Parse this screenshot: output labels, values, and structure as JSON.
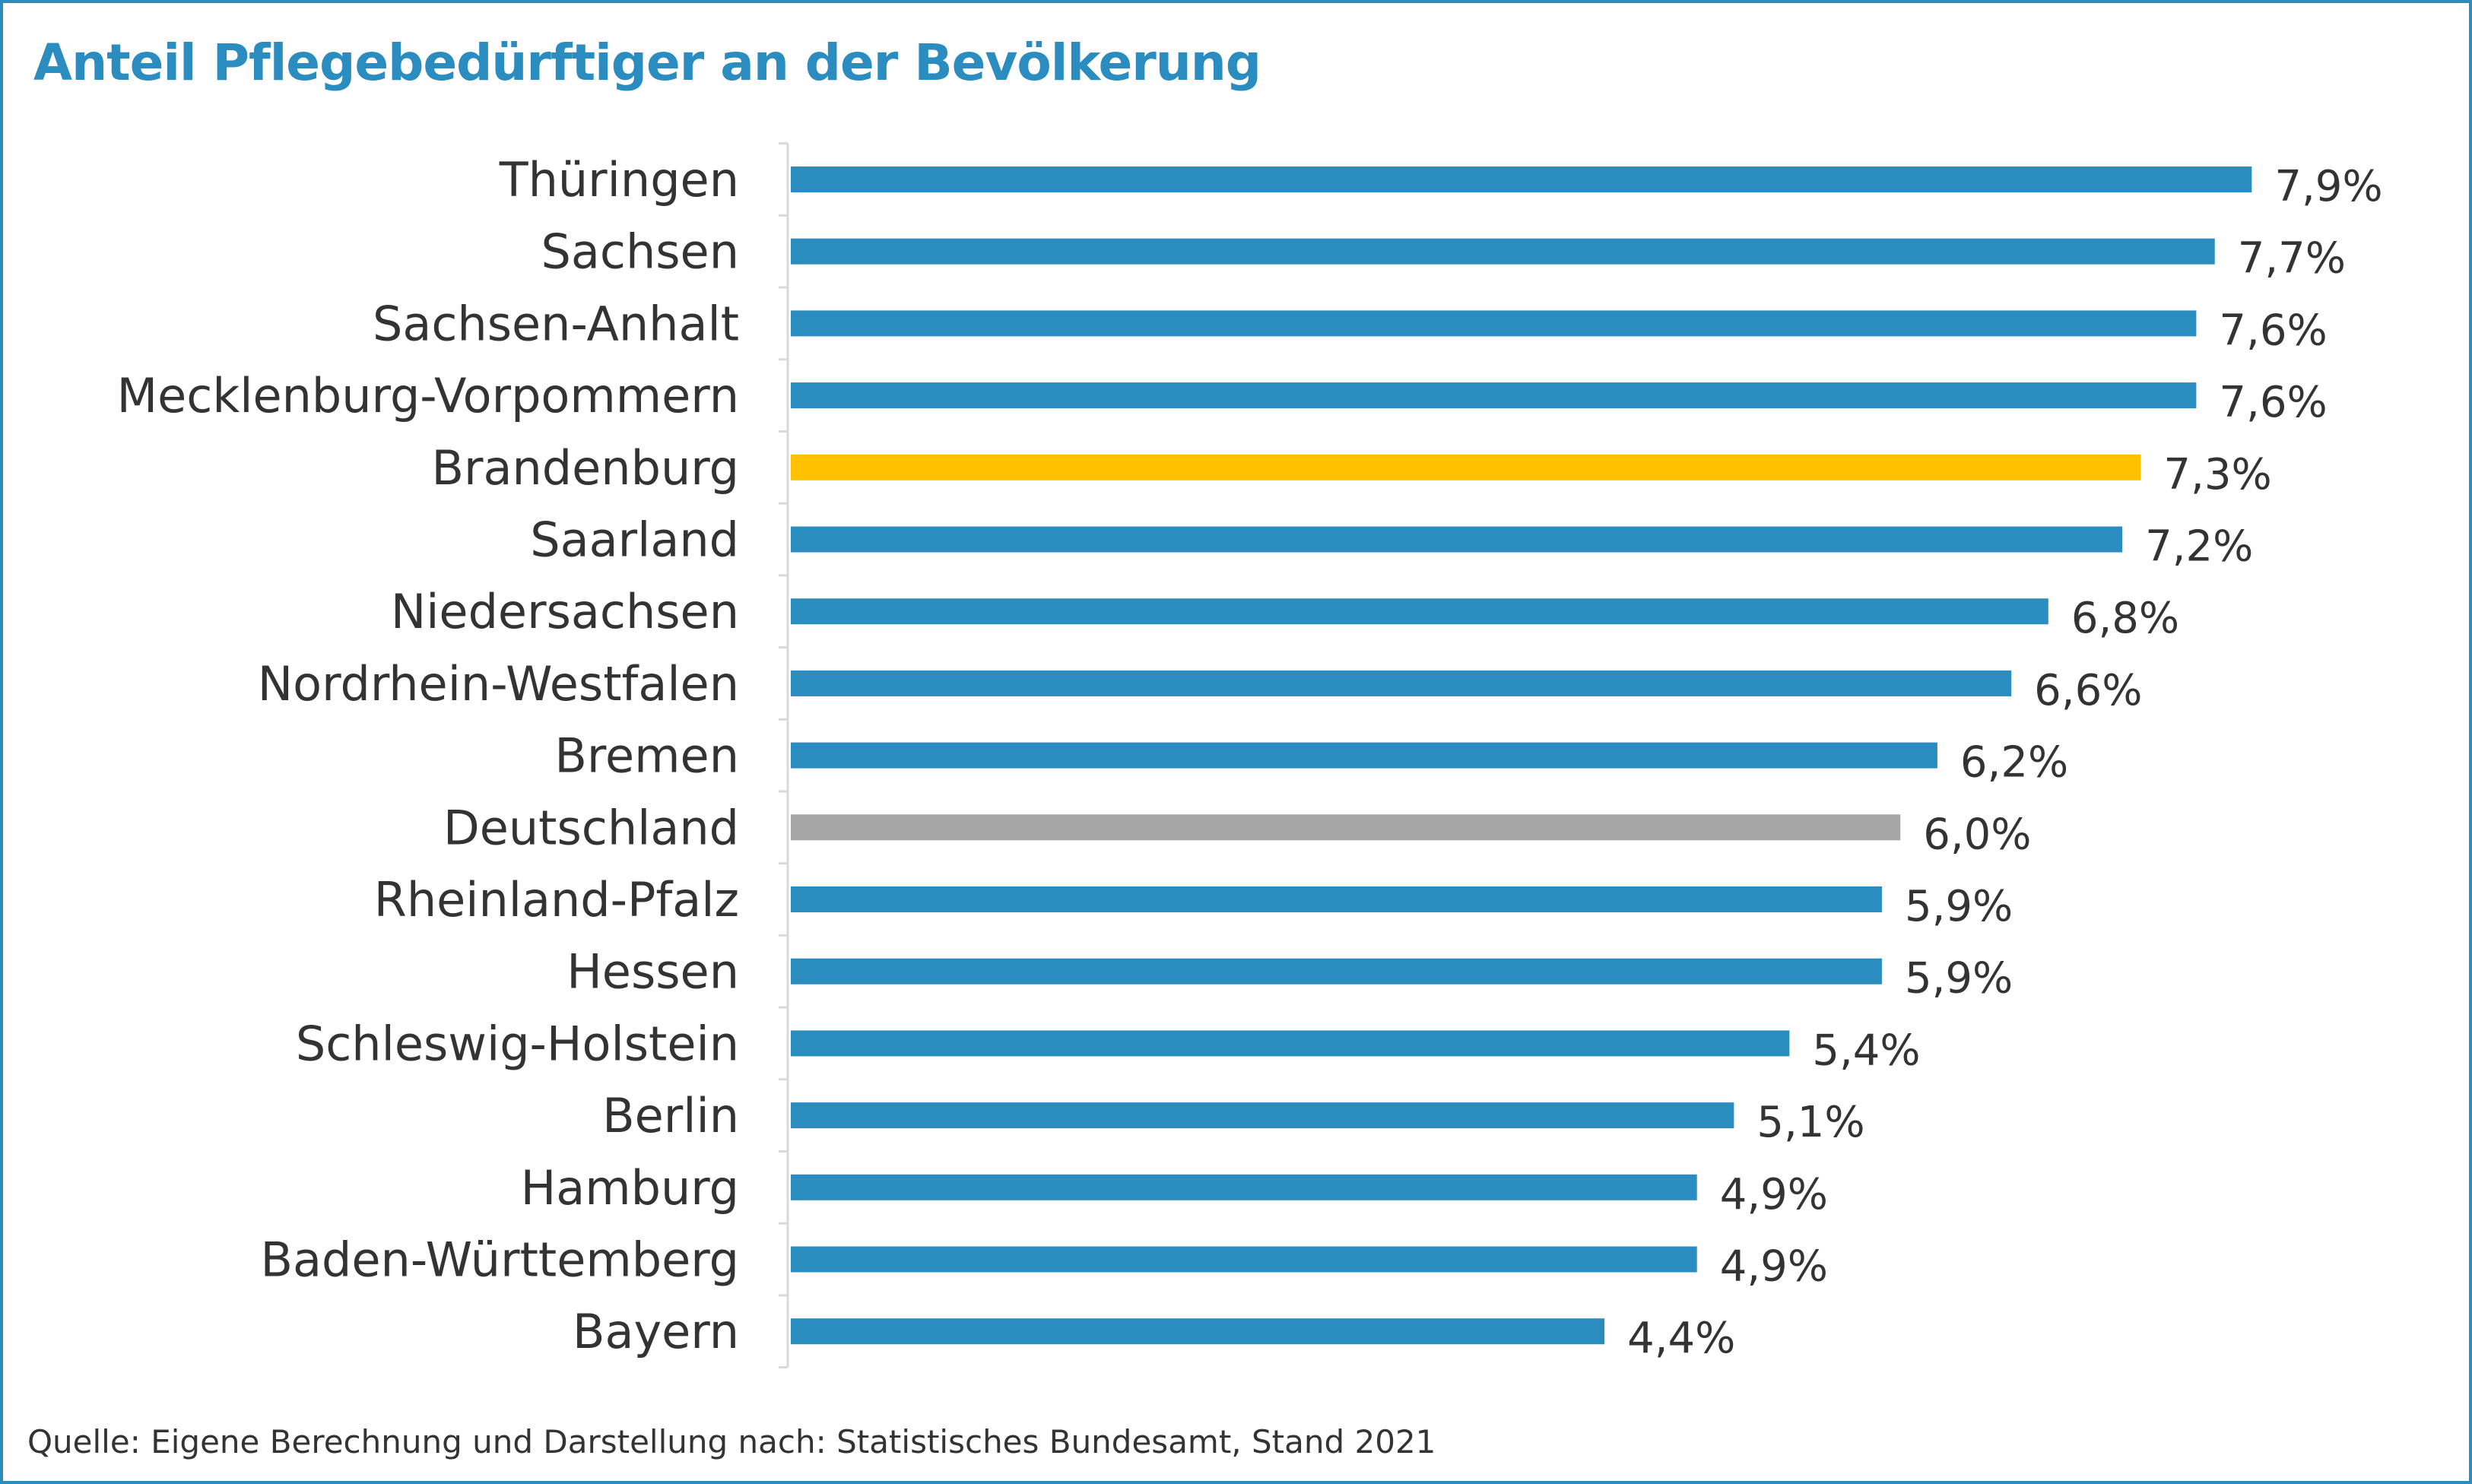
{
  "chart_data": {
    "type": "bar",
    "orientation": "horizontal",
    "title": "Anteil Pflegebedürftiger an der Bevölkerung",
    "categories": [
      "Thüringen",
      "Sachsen",
      "Sachsen-Anhalt",
      "Mecklenburg-Vorpommern",
      "Brandenburg",
      "Saarland",
      "Niedersachsen",
      "Nordrhein-Westfalen",
      "Bremen",
      "Deutschland",
      "Rheinland-Pfalz",
      "Hessen",
      "Schleswig-Holstein",
      "Berlin",
      "Hamburg",
      "Baden-Württemberg",
      "Bayern"
    ],
    "values": [
      7.9,
      7.7,
      7.6,
      7.6,
      7.3,
      7.2,
      6.8,
      6.6,
      6.2,
      6.0,
      5.9,
      5.9,
      5.4,
      5.1,
      4.9,
      4.9,
      4.4
    ],
    "value_labels": [
      "7,9%",
      "7,7%",
      "7,6%",
      "7,6%",
      "7,3%",
      "7,2%",
      "6,8%",
      "6,6%",
      "6,2%",
      "6,0%",
      "5,9%",
      "5,9%",
      "5,4%",
      "5,1%",
      "4,9%",
      "4,9%",
      "4,4%"
    ],
    "unit": "%",
    "xlim": [
      0,
      8.1
    ],
    "grid": false,
    "colors": {
      "default": "#2b8cbf",
      "Brandenburg": "#ffc000",
      "Deutschland": "#a6a6a6",
      "title": "#2b8cbf",
      "frame": "#2b8cbf",
      "axis": "#d9d9d9",
      "text": "#333333"
    }
  },
  "source": "Quelle: Eigene Berechnung und Darstellung nach: Statistisches Bundesamt, Stand 2021"
}
